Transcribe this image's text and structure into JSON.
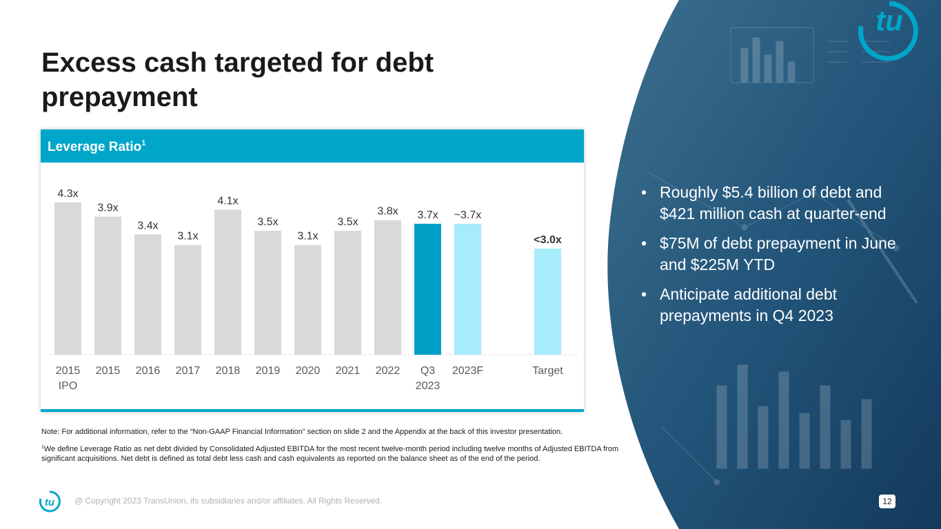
{
  "slide": {
    "title": "Excess cash targeted for debt prepayment",
    "panel_title": "Leverage Ratio",
    "panel_title_sup": "1",
    "bullets": [
      "Roughly $5.4 billion of debt and $421 million cash at quarter-end",
      "$75M of debt prepayment in June and $225M YTD",
      "Anticipate additional debt prepayments in Q4 2023"
    ],
    "note": "Note: For additional information, refer to the “Non-GAAP Financial Information” section on slide 2 and the Appendix at the back of this investor presentation.",
    "footnote_sup": "1",
    "footnote": "We define Leverage Ratio as net debt divided by Consolidated Adjusted EBITDA for the most recent twelve-month period including twelve months of Adjusted EBITDA from significant acquisitions. Net debt is defined as total debt less cash and cash equivalents as reported on the balance sheet as of the end of the period.",
    "copyright": "@ Copyright 2023 TransUnion, its subsidiaries and/or affiliates.  All Rights Reserved.",
    "page_number": "12",
    "logo_text": "tu"
  },
  "colors": {
    "accent": "#00a6ca",
    "bar_gray": "#d9d9d9",
    "bar_current": "#00a0c6",
    "bar_forecast": "#a7ecfa",
    "dark_blue": "#1f4f70"
  },
  "chart_data": {
    "type": "bar",
    "categories": [
      [
        "2015",
        "IPO"
      ],
      [
        "2015"
      ],
      [
        "2016"
      ],
      [
        "2017"
      ],
      [
        "2018"
      ],
      [
        "2019"
      ],
      [
        "2020"
      ],
      [
        "2021"
      ],
      [
        "2022"
      ],
      [
        "Q3",
        "2023"
      ],
      [
        "2023F"
      ],
      [
        "Target"
      ]
    ],
    "values": [
      4.3,
      3.9,
      3.4,
      3.1,
      4.1,
      3.5,
      3.1,
      3.5,
      3.8,
      3.7,
      3.7,
      3.0
    ],
    "labels": [
      "4.3x",
      "3.9x",
      "3.4x",
      "3.1x",
      "4.1x",
      "3.5x",
      "3.1x",
      "3.5x",
      "3.8x",
      "3.7x",
      "~3.7x",
      "<3.0x"
    ],
    "bar_styles": [
      "historical",
      "historical",
      "historical",
      "historical",
      "historical",
      "historical",
      "historical",
      "historical",
      "historical",
      "current",
      "forecast",
      "target"
    ],
    "ylim": [
      0,
      4.3
    ],
    "grid": false,
    "legend": "none"
  }
}
